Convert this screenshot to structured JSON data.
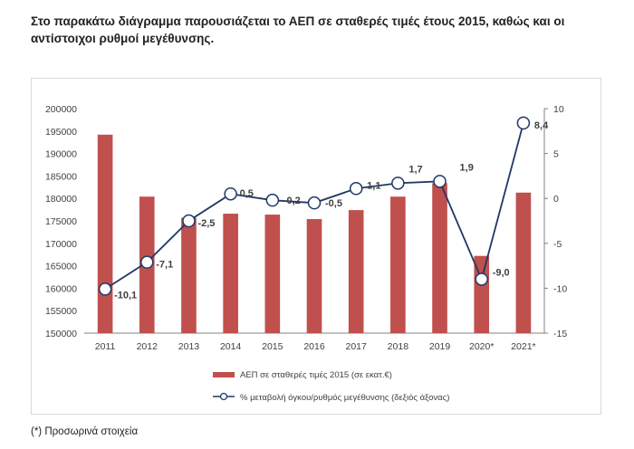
{
  "intro_text": "Στο παρακάτω διάγραμμα παρουσιάζεται το ΑΕΠ σε σταθερές τιμές έτους 2015, καθώς και οι αντίστοιχοι ρυθμοί μεγέθυνσης.",
  "footnote": "(*) Προσωρινά στοιχεία",
  "colors": {
    "bar": "#c0504d",
    "line": "#203864",
    "marker_fill": "#ffffff",
    "axis": "#808080",
    "text": "#404040"
  },
  "chart_data": {
    "type": "bar",
    "categories": [
      "2011",
      "2012",
      "2013",
      "2014",
      "2015",
      "2016",
      "2017",
      "2018",
      "2019",
      "2020*",
      "2021*"
    ],
    "series": [
      {
        "name": "ΑΕΠ σε σταθερές τιμές 2015 (σε εκατ.€)",
        "type": "bar",
        "axis": "left",
        "values": [
          194200,
          180400,
          175700,
          176600,
          176400,
          175400,
          177400,
          180400,
          183400,
          167200,
          181300
        ]
      },
      {
        "name": "% μεταβολή όγκου/ρυθμός μεγέθυνσης (δεξιός άξονας)",
        "type": "line",
        "axis": "right",
        "values": [
          -10.1,
          -7.1,
          -2.5,
          0.5,
          -0.2,
          -0.5,
          1.1,
          1.7,
          1.9,
          -9.0,
          8.4
        ],
        "labels": [
          "-10,1",
          "-7,1",
          "-2,5",
          "0,5",
          "-0,2",
          "-0,5",
          "1,1",
          "1,7",
          "1,9",
          "-9,0",
          "8,4"
        ]
      }
    ],
    "y_left": {
      "min": 150000,
      "max": 200000,
      "step": 5000,
      "tick_labels": [
        "150000",
        "155000",
        "160000",
        "165000",
        "170000",
        "175000",
        "180000",
        "185000",
        "190000",
        "195000",
        "200000"
      ]
    },
    "y_right": {
      "min": -15,
      "max": 10,
      "step": 5,
      "tick_labels": [
        "-15",
        "-10",
        "-5",
        "0",
        "5",
        "10"
      ]
    },
    "grid": false,
    "legend_position": "bottom"
  }
}
